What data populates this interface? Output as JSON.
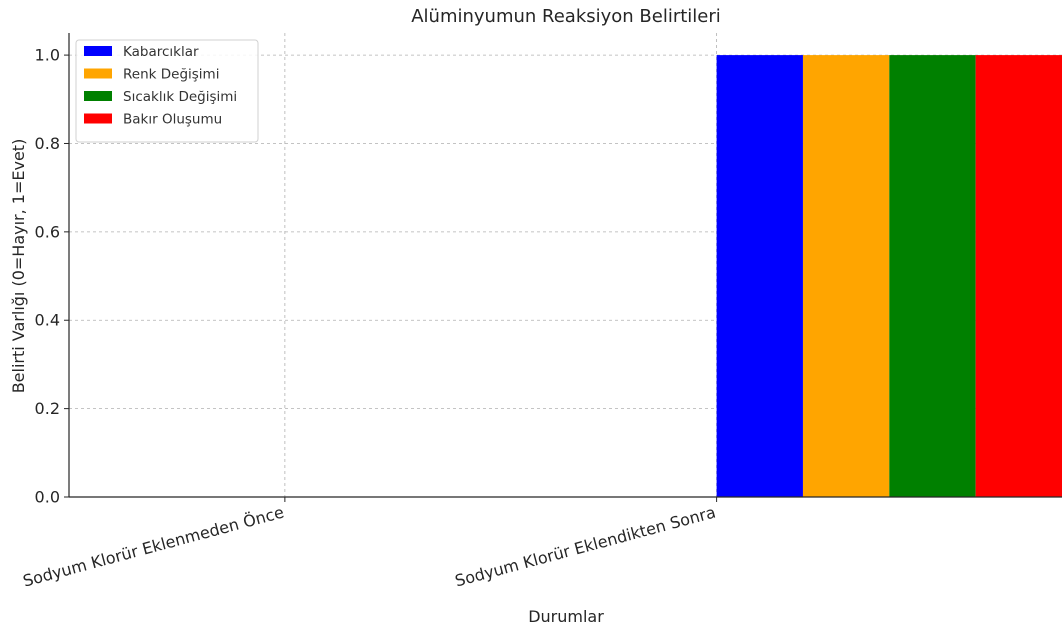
{
  "chart_data": {
    "type": "bar",
    "title": "Alüminyumun Reaksiyon Belirtileri",
    "xlabel": "Durumlar",
    "ylabel": "Belirti Varlığı (0=Hayır, 1=Evet)",
    "categories": [
      "Sodyum Klorür Eklenmeden Önce",
      "Sodyum Klorür Eklendikten Sonra"
    ],
    "series": [
      {
        "name": "Kabarcıklar",
        "color": "#0000ff",
        "values": [
          0,
          1
        ]
      },
      {
        "name": "Renk Değişimi",
        "color": "#ffa500",
        "values": [
          0,
          1
        ]
      },
      {
        "name": "Sıcaklık Değişimi",
        "color": "#008000",
        "values": [
          0,
          1
        ]
      },
      {
        "name": "Bakır Oluşumu",
        "color": "#ff0000",
        "values": [
          0,
          1
        ]
      }
    ],
    "ylim": [
      0,
      1.05
    ],
    "yticks": [
      0.0,
      0.2,
      0.4,
      0.6,
      0.8,
      1.0
    ],
    "ytick_labels": [
      "0.0",
      "0.2",
      "0.4",
      "0.6",
      "0.8",
      "1.0"
    ],
    "grid": true,
    "legend_position": "top-left"
  }
}
